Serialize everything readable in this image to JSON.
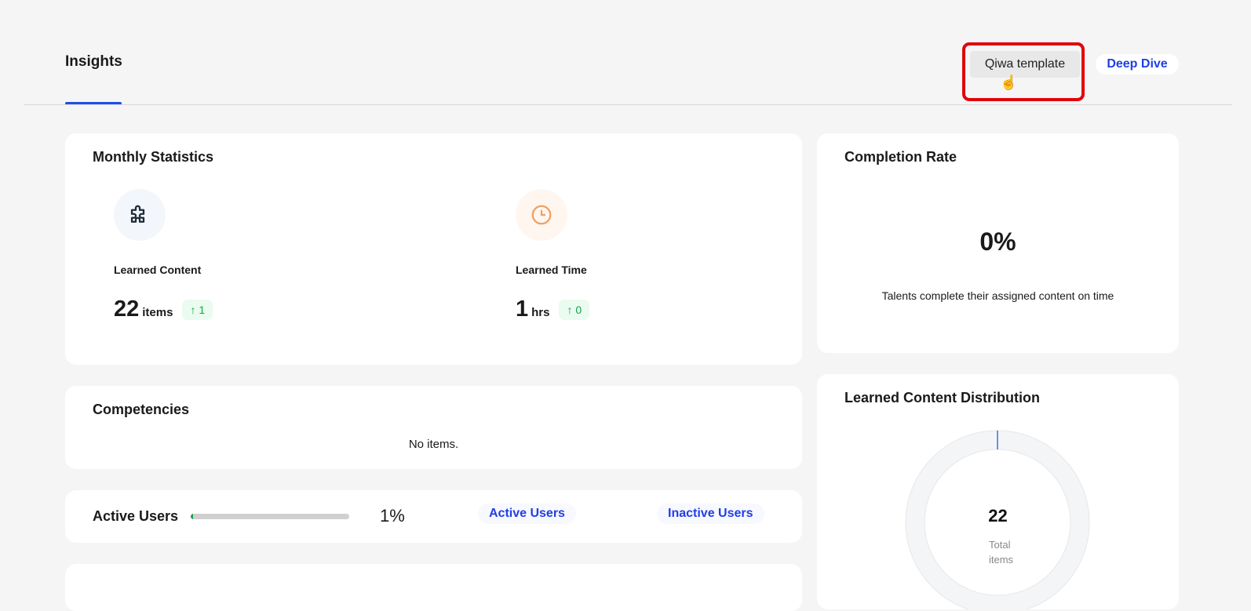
{
  "header": {
    "tab": "Insights",
    "qiwa_button": "Qiwa template",
    "deep_dive_button": "Deep Dive"
  },
  "monthly": {
    "title": "Monthly Statistics",
    "learned_content": {
      "label": "Learned Content",
      "value": "22",
      "unit": "items",
      "delta": "1",
      "icon": "puzzle-icon"
    },
    "learned_time": {
      "label": "Learned Time",
      "value": "1",
      "unit": "hrs",
      "delta": "0",
      "icon": "clock-icon"
    }
  },
  "competencies": {
    "title": "Competencies",
    "empty": "No items."
  },
  "active_users": {
    "title": "Active Users",
    "percent_text": "1%",
    "percent": 1,
    "active_link": "Active Users",
    "inactive_link": "Inactive Users"
  },
  "completion": {
    "title": "Completion Rate",
    "value": "0%",
    "description": "Talents complete their assigned content on time"
  },
  "distribution": {
    "title": "Learned Content Distribution",
    "total": "22",
    "total_label_1": "Total",
    "total_label_2": "items"
  },
  "colors": {
    "accent": "#1f3fe6",
    "highlight": "#e0040a",
    "positive": "#1aa34a"
  }
}
